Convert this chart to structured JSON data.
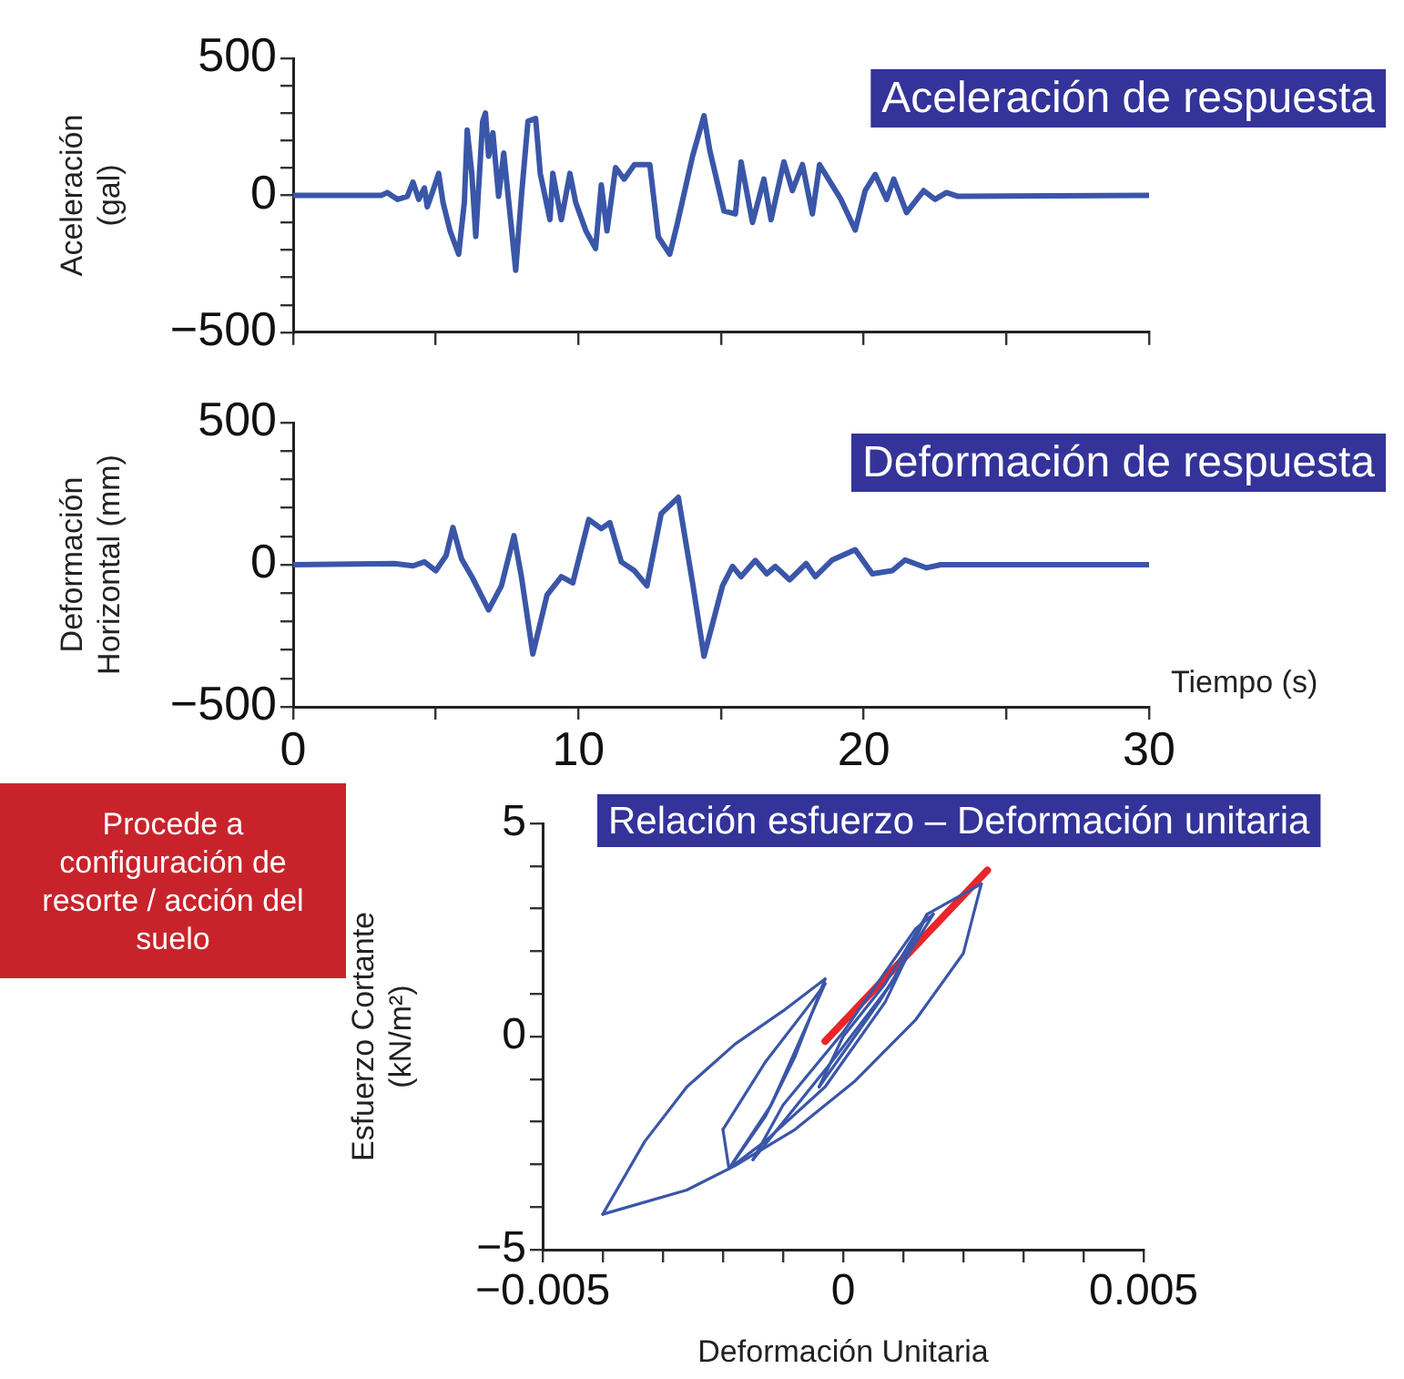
{
  "chart_data": [
    {
      "type": "line",
      "title": "Aceleración de respuesta",
      "ylabel": "Aceleración\n(gal)",
      "color": "#3a56a8",
      "marker": "none",
      "legend": false,
      "grid": false,
      "tick_labels": "y",
      "x": [
        0,
        3.1,
        3.3,
        3.66,
        4.0,
        4.2,
        4.4,
        4.6,
        4.7,
        4.9,
        5.1,
        5.25,
        5.5,
        5.8,
        6.0,
        6.1,
        6.26,
        6.4,
        6.64,
        6.74,
        6.85,
        7.0,
        7.2,
        7.38,
        7.6,
        7.8,
        8.0,
        8.23,
        8.5,
        8.66,
        9.0,
        9.1,
        9.4,
        9.7,
        9.9,
        10.26,
        10.6,
        10.8,
        11.0,
        11.3,
        11.6,
        11.96,
        12.5,
        12.8,
        13.2,
        13.45,
        14.0,
        14.4,
        14.6,
        15.1,
        15.5,
        15.7,
        16.1,
        16.5,
        16.75,
        17.2,
        17.5,
        17.85,
        18.2,
        18.45,
        19.2,
        19.7,
        20.05,
        20.4,
        20.8,
        21.05,
        21.5,
        22.1,
        22.5,
        22.9,
        23.3,
        30
      ],
      "values": [
        0,
        0,
        10,
        -15,
        -4,
        48,
        -15,
        27,
        -42,
        17,
        80,
        -25,
        -130,
        -215,
        -25,
        238,
        80,
        -150,
        270,
        300,
        143,
        228,
        -4,
        154,
        -68,
        -274,
        -4,
        270,
        280,
        80,
        -89,
        80,
        -89,
        80,
        -25,
        -130,
        -194,
        38,
        -130,
        101,
        59,
        112,
        112,
        -152,
        -215,
        -110,
        143,
        290,
        165,
        -57,
        -68,
        122,
        -99,
        59,
        -89,
        122,
        17,
        112,
        -68,
        112,
        -15,
        -127,
        17,
        76,
        -15,
        59,
        -63,
        17,
        -15,
        10,
        -4,
        0
      ],
      "xlim": [
        0,
        30
      ],
      "xticks": [
        0,
        {
          "value": 5,
          "label": null
        },
        10,
        {
          "value": 15,
          "label": null
        },
        20,
        {
          "value": 25,
          "label": null
        },
        30
      ],
      "ylim": [
        -500,
        500
      ],
      "yticks": [
        {
          "value": -500,
          "label": "−500"
        },
        {
          "value": -400,
          "label": null
        },
        {
          "value": -300,
          "label": null
        },
        {
          "value": -200,
          "label": null
        },
        {
          "value": -100,
          "label": null
        },
        0,
        {
          "value": 100,
          "label": null
        },
        {
          "value": 200,
          "label": null
        },
        {
          "value": 300,
          "label": null
        },
        {
          "value": 400,
          "label": null
        },
        500
      ]
    },
    {
      "type": "line",
      "title": "Deformación de respuesta",
      "ylabel": "Deformación\nHorizontal (mm)",
      "xlabel": "Tiempo (s)",
      "color": "#3a56a8",
      "marker": "none",
      "legend": false,
      "grid": false,
      "x": [
        0,
        3.55,
        4.2,
        4.6,
        5.0,
        5.36,
        5.6,
        5.9,
        6.3,
        6.85,
        7.3,
        7.74,
        8.0,
        8.4,
        8.9,
        9.4,
        9.8,
        10.36,
        10.8,
        11.1,
        11.5,
        11.96,
        12.4,
        12.9,
        13.5,
        14.0,
        14.4,
        15.05,
        15.4,
        15.7,
        16.2,
        16.6,
        16.9,
        17.4,
        17.98,
        18.3,
        18.9,
        19.7,
        20.3,
        21.0,
        21.45,
        22.2,
        22.7,
        30
      ],
      "values": [
        0,
        4,
        -4,
        10,
        -21,
        32,
        131,
        21,
        -49,
        -159,
        -74,
        102,
        -42,
        -314,
        -106,
        -42,
        -64,
        159,
        127,
        148,
        10,
        -21,
        -74,
        180,
        237,
        -64,
        -322,
        -74,
        -6,
        -42,
        15,
        -32,
        -6,
        -53,
        4,
        -42,
        17,
        53,
        -32,
        -21,
        17,
        -11,
        0,
        0
      ],
      "xlim": [
        0,
        30
      ],
      "xticks": [
        0,
        {
          "value": 5,
          "label": null
        },
        10,
        {
          "value": 15,
          "label": null
        },
        20,
        {
          "value": 25,
          "label": null
        },
        30
      ],
      "ylim": [
        -500,
        500
      ],
      "yticks": [
        {
          "value": -500,
          "label": "−500"
        },
        {
          "value": -400,
          "label": null
        },
        {
          "value": -300,
          "label": null
        },
        {
          "value": -200,
          "label": null
        },
        {
          "value": -100,
          "label": null
        },
        0,
        {
          "value": 100,
          "label": null
        },
        {
          "value": 200,
          "label": null
        },
        {
          "value": 300,
          "label": null
        },
        {
          "value": 400,
          "label": null
        },
        500
      ]
    },
    {
      "type": "line",
      "title": "Relación esfuerzo – Deformación unitaria",
      "ylabel": "Esfuerzo Cortante\n(kN/m²)",
      "xlabel": "Deformación Unitaria",
      "marker": "none",
      "legend": false,
      "grid": false,
      "annotations": [
        "Procede a configuración de resorte / acción del suelo"
      ],
      "series": [
        {
          "color": "#3a56a8",
          "x": [
            -0.0004,
            0,
            0.0007,
            0.0014,
            0.0023
          ],
          "values": [
            -1.18,
            0,
            1.24,
            2.87,
            3.58
          ]
        },
        {
          "color": "#3a56a8",
          "x": [
            -0.004,
            -0.0026,
            -0.0018,
            -0.0008,
            0.0002,
            0.0012,
            0.002,
            0.0023
          ],
          "values": [
            -4.17,
            -3.6,
            -3.03,
            -2.18,
            -1.04,
            0.38,
            1.95,
            3.58
          ]
        },
        {
          "color": "#3a56a8",
          "x": [
            -0.004,
            -0.0033,
            -0.0026,
            -0.0018,
            -0.001,
            -0.0003
          ],
          "values": [
            -4.17,
            -2.46,
            -1.18,
            -0.18,
            0.6,
            1.35
          ]
        },
        {
          "color": "#3a56a8",
          "x": [
            -0.002,
            -0.0019,
            -0.0013,
            -0.0008,
            -0.0003
          ],
          "values": [
            -2.18,
            -3.1,
            -1.89,
            -0.47,
            1.35
          ]
        },
        {
          "color": "#3a56a8",
          "x": [
            -0.002,
            -0.0013,
            -0.0006,
            -0.0003
          ],
          "values": [
            -2.18,
            -0.61,
            0.67,
            1.24
          ]
        },
        {
          "color": "#3a56a8",
          "x": [
            -0.0019,
            -0.0012,
            -0.0003
          ],
          "values": [
            -3.1,
            -1.61,
            1.24
          ]
        },
        {
          "color": "#3a56a8",
          "x": [
            -0.0019,
            -0.0013,
            -0.0003,
            0.0007,
            0.0014
          ],
          "values": [
            -3.1,
            -2.46,
            -1.18,
            0.81,
            2.87
          ]
        },
        {
          "color": "#3a56a8",
          "x": [
            -0.0015,
            -0.0002,
            0.0008,
            0.0014
          ],
          "values": [
            -2.89,
            -0.61,
            1.24,
            2.87
          ]
        },
        {
          "color": "#3a56a8",
          "x": [
            -0.0015,
            -0.001,
            0,
            0.0012,
            0.0015
          ],
          "values": [
            -2.89,
            -1.61,
            0.1,
            2.52,
            2.87
          ]
        },
        {
          "color": "#3a56a8",
          "x": [
            -0.0004,
            0.0006,
            0.0015
          ],
          "values": [
            -1.18,
            0.81,
            2.87
          ]
        },
        {
          "type": "line",
          "color": "#e8262b",
          "x": [
            -0.0003,
            0.0024
          ],
          "values": [
            -0.11,
            3.9
          ]
        }
      ],
      "xlim": [
        -0.005,
        0.005
      ],
      "xticks": [
        {
          "value": -0.005,
          "label": "−0.005"
        },
        {
          "value": -0.004,
          "label": null
        },
        {
          "value": -0.003,
          "label": null
        },
        {
          "value": -0.002,
          "label": null
        },
        {
          "value": -0.001,
          "label": null
        },
        0,
        {
          "value": 0.001,
          "label": null
        },
        {
          "value": 0.002,
          "label": null
        },
        {
          "value": 0.003,
          "label": null
        },
        {
          "value": 0.004,
          "label": null
        },
        0.005
      ],
      "ylim": [
        -5,
        5
      ],
      "yticks": [
        {
          "value": -5,
          "label": "−5"
        },
        {
          "value": -4,
          "label": null
        },
        {
          "value": -3,
          "label": null
        },
        {
          "value": -2,
          "label": null
        },
        {
          "value": -1,
          "label": null
        },
        0,
        {
          "value": 1,
          "label": null
        },
        {
          "value": 2,
          "label": null
        },
        {
          "value": 3,
          "label": null
        },
        {
          "value": 4,
          "label": null
        },
        5
      ]
    }
  ]
}
